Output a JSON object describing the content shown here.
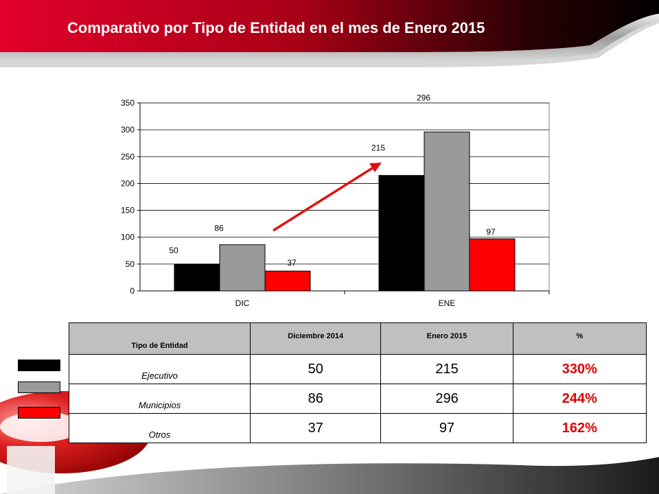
{
  "header": {
    "title": "Comparativo por Tipo de Entidad en el mes de Enero 2015"
  },
  "colors": {
    "ejecutivo": "#000000",
    "municipios": "#999999",
    "otros": "#ff0000",
    "arrow": "#e01010"
  },
  "chart_data": {
    "type": "bar",
    "categories": [
      "DIC",
      "ENE"
    ],
    "series": [
      {
        "values": [
          50,
          215
        ],
        "labels": [
          "50",
          "215"
        ]
      },
      {
        "values": [
          86,
          296
        ],
        "labels": [
          "86",
          "296"
        ]
      },
      {
        "values": [
          37,
          97
        ],
        "labels": [
          "37",
          "97"
        ]
      }
    ],
    "ylim": [
      0,
      350
    ],
    "yticks": [
      "0",
      "50",
      "100",
      "150",
      "200",
      "250",
      "300",
      "350"
    ],
    "grid": true
  },
  "table": {
    "headers": [
      "Tipo de Entidad",
      "Diciembre  2014",
      "Enero 2015",
      "%"
    ],
    "rows": [
      {
        "label": "Ejecutivo",
        "dic": "50",
        "ene": "215",
        "pct": "330%"
      },
      {
        "label": "Municipios",
        "dic": "86",
        "ene": "296",
        "pct": "244%"
      },
      {
        "label": "Otros",
        "dic": "37",
        "ene": "97",
        "pct": "162%"
      }
    ]
  }
}
